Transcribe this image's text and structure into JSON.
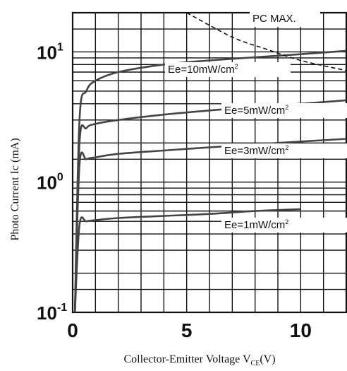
{
  "chart_data": {
    "type": "line",
    "title": "",
    "xlabel": {
      "main": "Collector-Emitter Voltage V",
      "subscript": "CE",
      "suffix": "(V)"
    },
    "ylabel": "Photo Current Ic (mA)",
    "x_scale": "linear",
    "y_scale": "log",
    "xlim": [
      0,
      12
    ],
    "ylim": [
      0.1,
      20
    ],
    "x_ticks": [
      {
        "value": 0,
        "label": "0"
      },
      {
        "value": 5,
        "label": "5"
      },
      {
        "value": 10,
        "label": "10"
      }
    ],
    "y_ticks": [
      {
        "value": 0.1,
        "base": "10",
        "exp": "-1"
      },
      {
        "value": 1,
        "base": "10",
        "exp": "0"
      },
      {
        "value": 10,
        "base": "10",
        "exp": "1"
      }
    ],
    "grid": true,
    "legend": "none",
    "line_color": "#444444",
    "series": [
      {
        "name": "Ee=10mW/cm²",
        "points": [
          [
            0.1,
            0.1
          ],
          [
            0.3,
            3.0
          ],
          [
            0.6,
            5.0
          ],
          [
            1.0,
            6.0
          ],
          [
            2.0,
            7.0
          ],
          [
            4.0,
            8.0
          ],
          [
            6.0,
            8.6
          ],
          [
            8.0,
            9.1
          ],
          [
            10.0,
            9.6
          ],
          [
            12.0,
            10.2
          ]
        ]
      },
      {
        "name": "Ee=5mW/cm²",
        "points": [
          [
            0.1,
            0.1
          ],
          [
            0.3,
            2.0
          ],
          [
            0.6,
            2.6
          ],
          [
            1.0,
            2.8
          ],
          [
            2.0,
            3.0
          ],
          [
            4.0,
            3.3
          ],
          [
            6.0,
            3.55
          ],
          [
            8.0,
            3.8
          ],
          [
            10.0,
            4.0
          ],
          [
            12.0,
            4.25
          ]
        ]
      },
      {
        "name": "Ee=3mW/cm²",
        "points": [
          [
            0.1,
            0.1
          ],
          [
            0.3,
            1.35
          ],
          [
            0.6,
            1.5
          ],
          [
            1.0,
            1.55
          ],
          [
            2.0,
            1.65
          ],
          [
            4.0,
            1.75
          ],
          [
            6.0,
            1.85
          ],
          [
            8.0,
            1.95
          ],
          [
            10.0,
            2.05
          ],
          [
            12.0,
            2.15
          ]
        ]
      },
      {
        "name": "Ee=1mW/cm²",
        "points": [
          [
            0.1,
            0.1
          ],
          [
            0.3,
            0.47
          ],
          [
            0.6,
            0.5
          ],
          [
            1.0,
            0.51
          ],
          [
            2.0,
            0.53
          ],
          [
            4.0,
            0.55
          ],
          [
            6.0,
            0.57
          ],
          [
            8.0,
            0.6
          ],
          [
            10.0,
            0.62
          ]
        ]
      },
      {
        "name": "PC MAX.",
        "dashed": true,
        "points": [
          [
            5.0,
            20.0
          ],
          [
            7.0,
            13.0
          ],
          [
            8.5,
            10.5
          ],
          [
            10.0,
            8.6
          ],
          [
            12.0,
            7.2
          ]
        ]
      }
    ],
    "labels": [
      {
        "text": "PC MAX.",
        "series": 4
      },
      {
        "text": "Ee=10mW/cm",
        "sup": "2",
        "series": 0
      },
      {
        "text": "Ee=5mW/cm",
        "sup": "2",
        "series": 1
      },
      {
        "text": "Ee=3mW/cm",
        "sup": "2",
        "series": 2
      },
      {
        "text": "Ee=1mW/cm",
        "sup": "2",
        "series": 3
      }
    ]
  }
}
